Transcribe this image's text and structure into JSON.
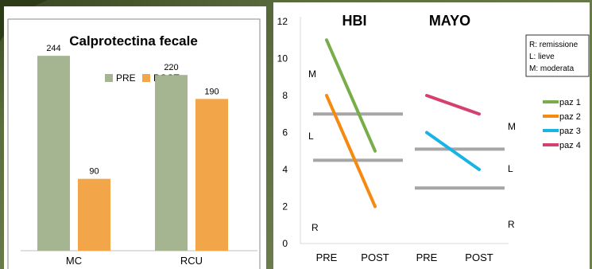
{
  "colors": {
    "background_green": "#5c6e3e",
    "background_dark": "#3b4a22",
    "pre_bar": "#a5b592",
    "post_bar": "#f2a649",
    "gridline": "#a6a6a6",
    "paz1": "#78ad4a",
    "paz2": "#f58a11",
    "paz3": "#1ab3e6",
    "paz4": "#d6406e"
  },
  "chart_data": [
    {
      "type": "bar",
      "title": "Calprotectina fecale",
      "categories": [
        "MC",
        "RCU"
      ],
      "series": [
        {
          "name": "PRE",
          "values": [
            244,
            220
          ]
        },
        {
          "name": "POST",
          "values": [
            90,
            190
          ]
        }
      ],
      "data_labels": [
        "244",
        "90",
        "220",
        "190"
      ],
      "ylim": [
        0,
        280
      ],
      "legend": "top",
      "grid": false
    },
    {
      "type": "line",
      "group_labels": [
        "HBI",
        "MAYO"
      ],
      "x": [
        "PRE",
        "POST",
        "PRE",
        "POST"
      ],
      "ylim": [
        0,
        12
      ],
      "y_ticks": [
        "0",
        "2",
        "4",
        "6",
        "8",
        "10",
        "12"
      ],
      "series": [
        {
          "name": "paz 1",
          "x": [
            0,
            1
          ],
          "y": [
            11,
            5
          ]
        },
        {
          "name": "paz 2",
          "x": [
            0,
            1
          ],
          "y": [
            8,
            2
          ]
        },
        {
          "name": "paz 3",
          "x": [
            2,
            3
          ],
          "y": [
            6,
            4
          ]
        },
        {
          "name": "paz 4",
          "x": [
            2,
            3
          ],
          "y": [
            8,
            7
          ]
        }
      ],
      "thresholds": [
        {
          "group": "HBI",
          "y": 7
        },
        {
          "group": "HBI",
          "y": 4.5
        },
        {
          "group": "MAYO",
          "y": 5.1
        },
        {
          "group": "MAYO",
          "y": 3
        }
      ],
      "zone_labels_left": [
        "M",
        "L",
        "R"
      ],
      "zone_labels_right": [
        "M",
        "L",
        "R"
      ],
      "key_box": [
        "R: remissione",
        "L: lieve",
        "M: moderata"
      ],
      "legend": "right",
      "grid": false
    }
  ]
}
